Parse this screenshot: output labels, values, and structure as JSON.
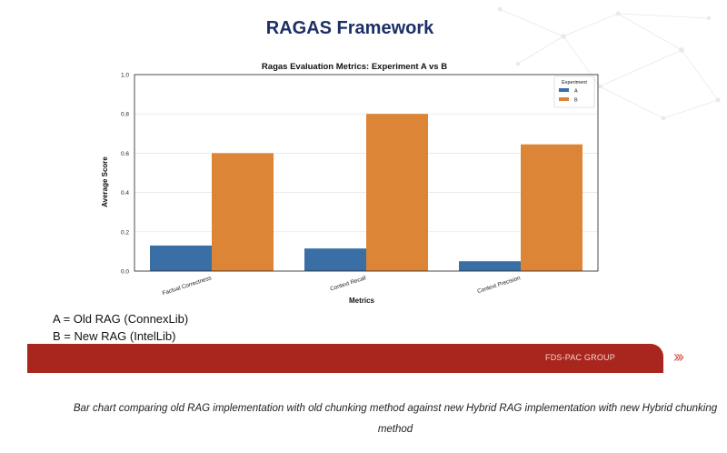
{
  "slide": {
    "title": "RAGAS Framework",
    "legend_note_a": "A = Old RAG (ConnexLib)",
    "legend_note_b": "B = New RAG (IntelLib)",
    "banner_text": "FDS-PAC GROUP",
    "chevrons": "›››",
    "caption": "Bar chart comparing old RAG implementation with old chunking method against new Hybrid RAG implementation with new Hybrid chunking method",
    "colors": {
      "title": "#1c2f66",
      "banner": "#a9261e"
    }
  },
  "chart_data": {
    "type": "bar",
    "title": "Ragas Evaluation Metrics: Experiment A vs B",
    "xlabel": "Metrics",
    "ylabel": "Average Score",
    "categories": [
      "Factual Correctness",
      "Context Recall",
      "Context Precision"
    ],
    "series": [
      {
        "name": "A",
        "values": [
          0.13,
          0.115,
          0.05
        ],
        "color": "#3a6fa6"
      },
      {
        "name": "B",
        "values": [
          0.6,
          0.8,
          0.645
        ],
        "color": "#dd8536"
      }
    ],
    "ylim": [
      0,
      1.0
    ],
    "yticks": [
      "0.0",
      "0.2",
      "0.4",
      "0.6",
      "0.8",
      "1.0"
    ],
    "grid": true,
    "legend": {
      "title": "Experiment",
      "placement": "top-right"
    }
  }
}
